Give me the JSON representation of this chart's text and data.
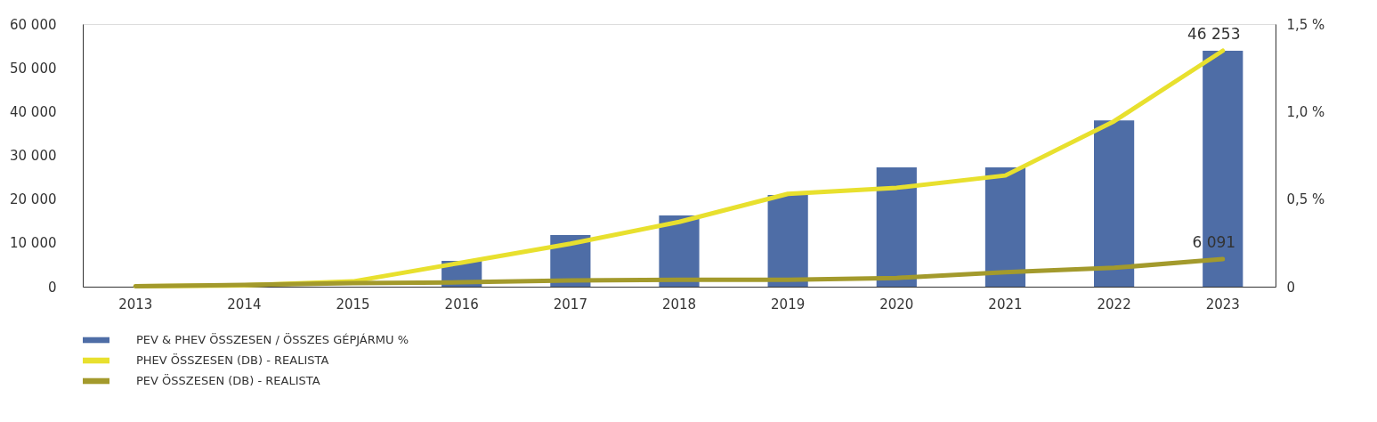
{
  "chart_data": {
    "type": "bar",
    "categories": [
      "2013",
      "2014",
      "2015",
      "2016",
      "2017",
      "2018",
      "2019",
      "2020",
      "2021",
      "2022",
      "2023"
    ],
    "series": [
      {
        "name": "PEV & PHEV ÖSSZESEN / ÖSSZES GÉPJÁRMU %",
        "axis": "y2",
        "color": "#4e6da6",
        "values": [
          null,
          null,
          null,
          0.147,
          0.295,
          0.407,
          0.524,
          0.681,
          0.681,
          0.95,
          1.347
        ]
      },
      {
        "name": "PHEV ÖSSZESEN (DB) - REALISTA",
        "type": "line",
        "color": "#e8e02e",
        "values": [
          100,
          300,
          1200,
          5500,
          9800,
          14800,
          21200,
          22600,
          25400,
          37800,
          53900
        ]
      },
      {
        "name": "PEV ÖSSZESEN (DB) - REALISTA",
        "type": "line",
        "color": "#a39a2c",
        "values": [
          100,
          400,
          800,
          1000,
          1400,
          1600,
          1600,
          2000,
          3300,
          4300,
          6300
        ]
      }
    ],
    "ylim": [
      0,
      60000
    ],
    "yticks": [
      0,
      {
        "value": 10000,
        "label": "10 000"
      },
      {
        "value": 20000,
        "label": "20 000"
      },
      {
        "value": 30000,
        "label": "30 000"
      },
      {
        "value": 40000,
        "label": "40 000"
      },
      {
        "value": 50000,
        "label": "50 000"
      },
      {
        "value": 60000,
        "label": "60 000"
      }
    ],
    "y2lim": [
      0,
      1.5
    ],
    "y2ticks": [
      0,
      {
        "value": 0.5,
        "label": "0,5 %"
      },
      {
        "value": 1.0,
        "label": "1,0 %"
      },
      {
        "value": 1.5,
        "label": "1,5 %"
      }
    ],
    "annotations": [
      {
        "text": "46 253",
        "x": "2023",
        "y": 53900
      },
      {
        "text": "6 091",
        "x": "2023",
        "y": 6300
      }
    ],
    "grid": false,
    "legend": "bottom left",
    "line_style": "solid",
    "marker": "none"
  }
}
